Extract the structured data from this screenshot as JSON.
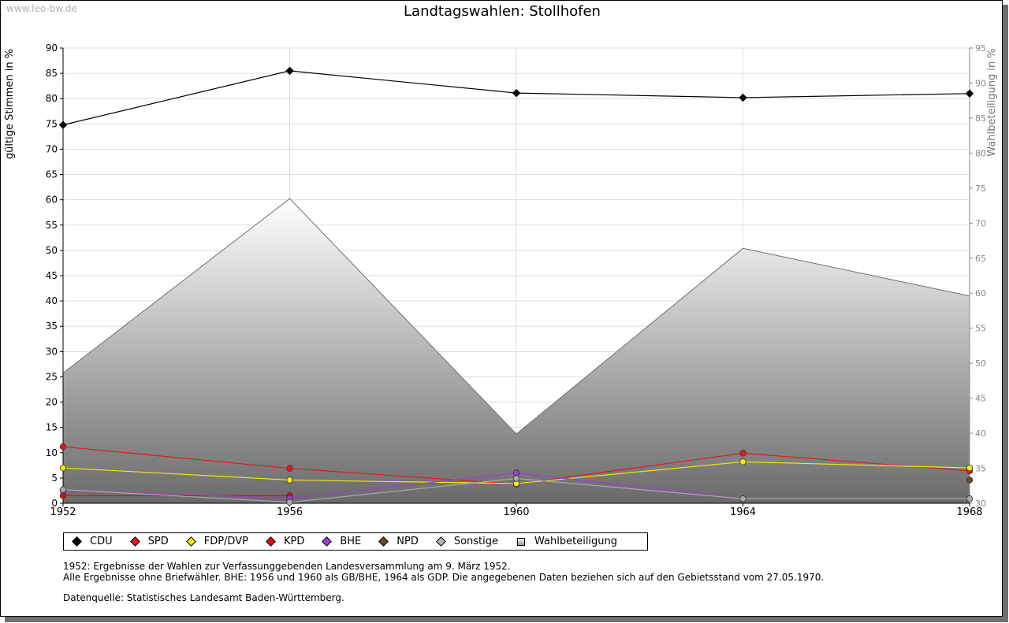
{
  "watermark": "www.leo-bw.de",
  "chart_data": {
    "type": "line",
    "title": "Landtagswahlen: Stollhofen",
    "ylabel": "gültige Stimmen in %",
    "y2label": "Wahlbeteiligung in %",
    "x": [
      "1952",
      "1956",
      "1960",
      "1964",
      "1968"
    ],
    "ylim": [
      0,
      90
    ],
    "y2lim": [
      30,
      95
    ],
    "yticks": [
      0,
      5,
      10,
      15,
      20,
      25,
      30,
      35,
      40,
      45,
      50,
      55,
      60,
      65,
      70,
      75,
      80,
      85,
      90
    ],
    "y2ticks": [
      30,
      35,
      40,
      45,
      50,
      55,
      60,
      65,
      70,
      75,
      80,
      85,
      90,
      95
    ],
    "grid": true,
    "series": [
      {
        "name": "CDU",
        "color": "#000000",
        "values": [
          74.8,
          85.5,
          81.1,
          80.2,
          81.0
        ]
      },
      {
        "name": "SPD",
        "color": "#e31a1c",
        "values": [
          11.2,
          6.9,
          3.8,
          9.9,
          6.4
        ]
      },
      {
        "name": "FDP/DVP",
        "color": "#f5e614",
        "values": [
          7.0,
          4.6,
          3.9,
          8.2,
          7.0
        ]
      },
      {
        "name": "KPD",
        "color": "#d81010",
        "values": [
          1.5,
          1.5,
          null,
          null,
          null
        ]
      },
      {
        "name": "BHE",
        "color": "#9b3fd0",
        "values": [
          2.5,
          1.0,
          6.0,
          0.9,
          null
        ]
      },
      {
        "name": "NPD",
        "color": "#6b4a2a",
        "values": [
          null,
          null,
          null,
          null,
          4.6
        ]
      },
      {
        "name": "Sonstige",
        "color": "#aaaaaa",
        "values": [
          2.7,
          0.2,
          4.9,
          0.9,
          0.9
        ]
      }
    ],
    "area": {
      "name": "Wahlbeteiligung",
      "axis": "right",
      "values": [
        48.6,
        73.5,
        39.9,
        66.4,
        59.6
      ]
    }
  },
  "legend": [
    {
      "label": "CDU",
      "color": "#000000"
    },
    {
      "label": "SPD",
      "color": "#e31a1c"
    },
    {
      "label": "FDP/DVP",
      "color": "#f5e614"
    },
    {
      "label": "KPD",
      "color": "#d81010"
    },
    {
      "label": "BHE",
      "color": "#9b3fd0"
    },
    {
      "label": "NPD",
      "color": "#6b4a2a"
    },
    {
      "label": "Sonstige",
      "color": "#b4b4b4"
    },
    {
      "label": "Wahlbeteiligung",
      "color": "#cccccc"
    }
  ],
  "notes": {
    "line1": "1952: Ergebnisse der Wahlen zur Verfassunggebenden Landesversammlung am 9. März 1952.",
    "line2": "Alle Ergebnisse ohne Briefwähler. BHE: 1956 und 1960 als GB/BHE, 1964 als GDP. Die angegebenen Daten beziehen sich auf den Gebietsstand vom 27.05.1970.",
    "source": "Datenquelle: Statistisches Landesamt Baden-Württemberg."
  }
}
